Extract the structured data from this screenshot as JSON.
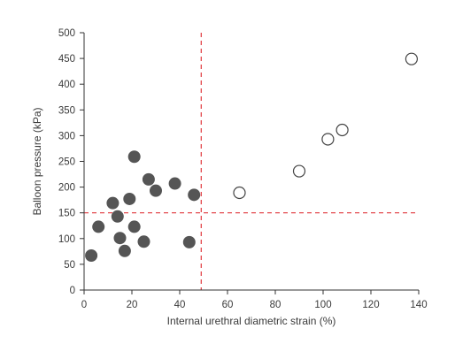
{
  "chart_data": {
    "type": "scatter",
    "title": "",
    "xlabel": "Internal urethral diametric strain (%)",
    "ylabel": "Balloon pressure (kPa)",
    "xlim": [
      0,
      140
    ],
    "ylim": [
      0,
      500
    ],
    "xticks": [
      0,
      20,
      40,
      60,
      80,
      100,
      120,
      140
    ],
    "yticks": [
      0,
      50,
      100,
      150,
      200,
      250,
      300,
      350,
      400,
      450,
      500
    ],
    "xtick_labels": [
      "0",
      "20",
      "40",
      "60",
      "80",
      "100",
      "120",
      "140"
    ],
    "ytick_labels": [
      "0",
      "50",
      "100",
      "150",
      "200",
      "250",
      "300",
      "350",
      "400",
      "450",
      "500"
    ],
    "grid": false,
    "series": [
      {
        "marker": "filled-circle",
        "color": "#555555",
        "points": [
          {
            "x": 3,
            "y": 67
          },
          {
            "x": 6,
            "y": 123
          },
          {
            "x": 12,
            "y": 169
          },
          {
            "x": 14,
            "y": 143
          },
          {
            "x": 15,
            "y": 101
          },
          {
            "x": 17,
            "y": 76
          },
          {
            "x": 19,
            "y": 177
          },
          {
            "x": 21,
            "y": 259
          },
          {
            "x": 21,
            "y": 123
          },
          {
            "x": 25,
            "y": 94
          },
          {
            "x": 27,
            "y": 215
          },
          {
            "x": 30,
            "y": 193
          },
          {
            "x": 38,
            "y": 207
          },
          {
            "x": 44,
            "y": 93
          },
          {
            "x": 46,
            "y": 185
          }
        ]
      },
      {
        "marker": "open-circle",
        "color": "#555555",
        "points": [
          {
            "x": 65,
            "y": 189
          },
          {
            "x": 90,
            "y": 231
          },
          {
            "x": 102,
            "y": 293
          },
          {
            "x": 108,
            "y": 311
          },
          {
            "x": 137,
            "y": 449
          }
        ]
      }
    ],
    "reference_lines": [
      {
        "orientation": "vertical",
        "value": 49,
        "style": "dashed",
        "color": "#e0393e"
      },
      {
        "orientation": "horizontal",
        "value": 150,
        "style": "dashed",
        "color": "#e0393e"
      }
    ]
  }
}
